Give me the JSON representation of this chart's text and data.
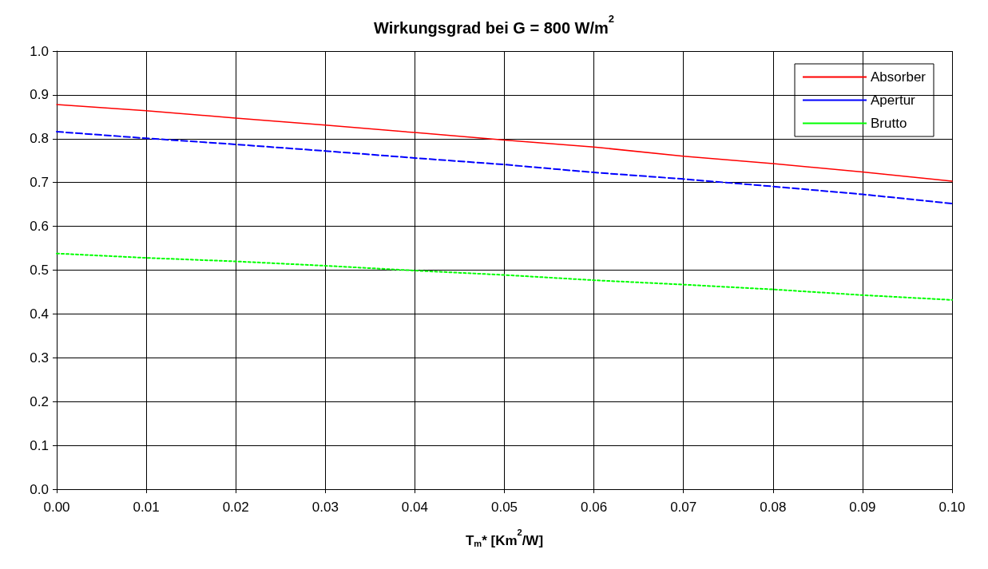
{
  "chart_data": {
    "type": "line",
    "title": "Wirkungsgrad bei G = 800 W/m$^{2}$",
    "xlabel": "T$_{m}$* [Km$^{2}$/W]",
    "x": [
      0,
      0.01,
      0.02,
      0.03,
      0.04,
      0.05,
      0.06,
      0.07,
      0.08,
      0.09,
      0.1
    ],
    "series": [
      {
        "name": "Absorber",
        "color": "#ff0000",
        "line_style": "solid",
        "values": [
          0.878,
          0.864,
          0.847,
          0.831,
          0.814,
          0.797,
          0.781,
          0.76,
          0.743,
          0.724,
          0.703
        ]
      },
      {
        "name": "Apertur",
        "color": "#0000ff",
        "line_style": "dashed",
        "values": [
          0.816,
          0.801,
          0.787,
          0.772,
          0.756,
          0.741,
          0.723,
          0.708,
          0.691,
          0.673,
          0.652
        ]
      },
      {
        "name": "Brutto",
        "color": "#00ff00",
        "line_style": "dotted",
        "values": [
          0.538,
          0.528,
          0.52,
          0.51,
          0.499,
          0.489,
          0.477,
          0.467,
          0.456,
          0.443,
          0.432
        ]
      }
    ],
    "xlim": [
      0,
      0.1
    ],
    "ylim": [
      0,
      1
    ],
    "xticks": [
      {
        "value": 0,
        "label": "0.00"
      },
      0.01,
      0.02,
      0.03,
      0.04,
      0.05,
      0.06,
      0.07,
      0.08,
      0.09,
      {
        "value": 0.1,
        "label": "0.10"
      }
    ],
    "yticks": [
      {
        "value": 0,
        "label": "0.0"
      },
      0.1,
      0.2,
      0.3,
      0.4,
      0.5,
      0.6,
      0.7,
      0.8,
      0.9,
      {
        "value": 1,
        "label": "1.0"
      }
    ],
    "grid": true,
    "legend": "top right",
    "marker": "none"
  }
}
